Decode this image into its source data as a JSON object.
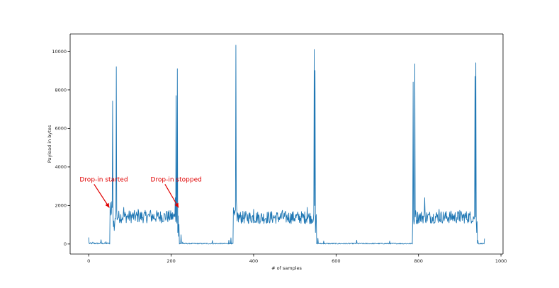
{
  "chart_data": {
    "type": "line",
    "xlabel": "# of samples",
    "ylabel": "Payload in bytes",
    "xlim": [
      -45,
      1005
    ],
    "ylim": [
      -520,
      10900
    ],
    "xticks": [
      0,
      200,
      400,
      600,
      800,
      1000
    ],
    "yticks": [
      0,
      2000,
      4000,
      6000,
      8000,
      10000
    ],
    "grid": false,
    "colors": {
      "series": "#1f77b4",
      "annotation": "#e00000"
    },
    "series": [
      {
        "name": "",
        "segments": [
          {
            "x_start": 0,
            "x_end": 51,
            "baseline": 30,
            "noise": 40,
            "spikes": [
              [
                0,
                340
              ],
              [
                10,
                100
              ],
              [
                30,
                220
              ],
              [
                42,
                120
              ]
            ]
          },
          {
            "x_start": 52,
            "x_end": 57,
            "baseline": 1800,
            "noise": 250,
            "spikes": [
              [
                52,
                2150
              ],
              [
                54,
                1500
              ],
              [
                56,
                2200
              ]
            ]
          },
          {
            "x_start": 58,
            "x_end": 70,
            "baseline": 1400,
            "noise": 300,
            "spikes": [
              [
                58,
                7420
              ],
              [
                59,
                1500
              ],
              [
                60,
                900
              ],
              [
                61,
                1200
              ],
              [
                62,
                700
              ],
              [
                63,
                1000
              ],
              [
                65,
                1300
              ],
              [
                67,
                9200
              ],
              [
                68,
                1700
              ]
            ]
          },
          {
            "x_start": 71,
            "x_end": 208,
            "baseline": 1420,
            "noise": 330,
            "spikes": [
              [
                85,
                1900
              ],
              [
                120,
                1800
              ],
              [
                150,
                1750
              ],
              [
                190,
                1700
              ]
            ]
          },
          {
            "x_start": 209,
            "x_end": 219,
            "baseline": 1300,
            "noise": 300,
            "spikes": [
              [
                210,
                2400
              ],
              [
                212,
                7700
              ],
              [
                213,
                1300
              ],
              [
                215,
                9100
              ],
              [
                216,
                600
              ],
              [
                218,
                400
              ]
            ]
          },
          {
            "x_start": 220,
            "x_end": 350,
            "baseline": 20,
            "noise": 30,
            "spikes": [
              [
                224,
                480
              ],
              [
                228,
                100
              ],
              [
                300,
                180
              ],
              [
                340,
                200
              ],
              [
                345,
                320
              ]
            ]
          },
          {
            "x_start": 351,
            "x_end": 361,
            "baseline": 1500,
            "noise": 400,
            "spikes": [
              [
                352,
                1600
              ],
              [
                354,
                1500
              ],
              [
                357,
                10320
              ],
              [
                358,
                2300
              ],
              [
                360,
                1200
              ]
            ]
          },
          {
            "x_start": 362,
            "x_end": 545,
            "baseline": 1380,
            "noise": 330,
            "spikes": [
              [
                400,
                1800
              ],
              [
                470,
                1750
              ],
              [
                530,
                1900
              ]
            ]
          },
          {
            "x_start": 546,
            "x_end": 552,
            "baseline": 1300,
            "noise": 300,
            "spikes": [
              [
                547,
                10100
              ],
              [
                548,
                2000
              ],
              [
                549,
                9000
              ],
              [
                550,
                600
              ]
            ]
          },
          {
            "x_start": 553,
            "x_end": 785,
            "baseline": 20,
            "noise": 30,
            "spikes": [
              [
                556,
                300
              ],
              [
                570,
                150
              ],
              [
                650,
                200
              ],
              [
                730,
                150
              ]
            ]
          },
          {
            "x_start": 786,
            "x_end": 797,
            "baseline": 1400,
            "noise": 400,
            "spikes": [
              [
                787,
                8400
              ],
              [
                788,
                1300
              ],
              [
                790,
                1200
              ],
              [
                791,
                9350
              ],
              [
                792,
                1400
              ],
              [
                794,
                1600
              ]
            ]
          },
          {
            "x_start": 798,
            "x_end": 935,
            "baseline": 1400,
            "noise": 330,
            "spikes": [
              [
                815,
                2400
              ],
              [
                850,
                1800
              ],
              [
                900,
                1750
              ]
            ]
          },
          {
            "x_start": 936,
            "x_end": 942,
            "baseline": 1300,
            "noise": 300,
            "spikes": [
              [
                937,
                8700
              ],
              [
                938,
                1400
              ],
              [
                939,
                9400
              ],
              [
                940,
                1200
              ],
              [
                941,
                600
              ]
            ]
          },
          {
            "x_start": 943,
            "x_end": 960,
            "baseline": 20,
            "noise": 30,
            "spikes": [
              [
                944,
                200
              ],
              [
                960,
                280
              ]
            ]
          }
        ]
      }
    ],
    "annotations": [
      {
        "text": "Drop-in started",
        "text_x": -22,
        "text_y": 3250,
        "arrow_to": [
          50,
          2000
        ]
      },
      {
        "text": "Drop-in stopped",
        "text_x": 150,
        "text_y": 3250,
        "arrow_to": [
          218,
          2000
        ]
      }
    ]
  }
}
